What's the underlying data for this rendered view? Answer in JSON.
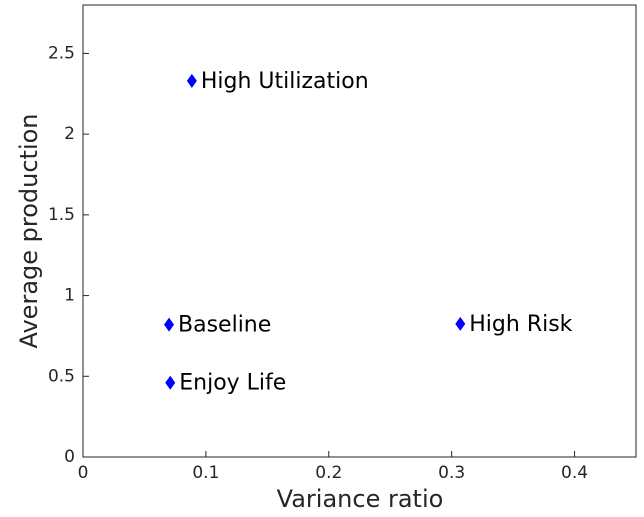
{
  "chart_data": {
    "type": "scatter",
    "x_label": "Variance ratio",
    "y_label": "Average production",
    "x": [
      0.0886,
      0.07,
      0.071,
      0.307
    ],
    "values": [
      2.33,
      0.82,
      0.46,
      0.825
    ],
    "labels": [
      "High Utilization",
      "Baseline",
      "Enjoy Life",
      "High Risk"
    ],
    "color": "#0000ff",
    "xlim": [
      0,
      0.45
    ],
    "xticks": [
      0,
      0.1,
      0.2,
      0.3,
      0.4
    ],
    "ylim": [
      0,
      2.8
    ],
    "yticks": [
      0,
      0.5,
      1,
      1.5,
      2,
      2.5
    ]
  }
}
